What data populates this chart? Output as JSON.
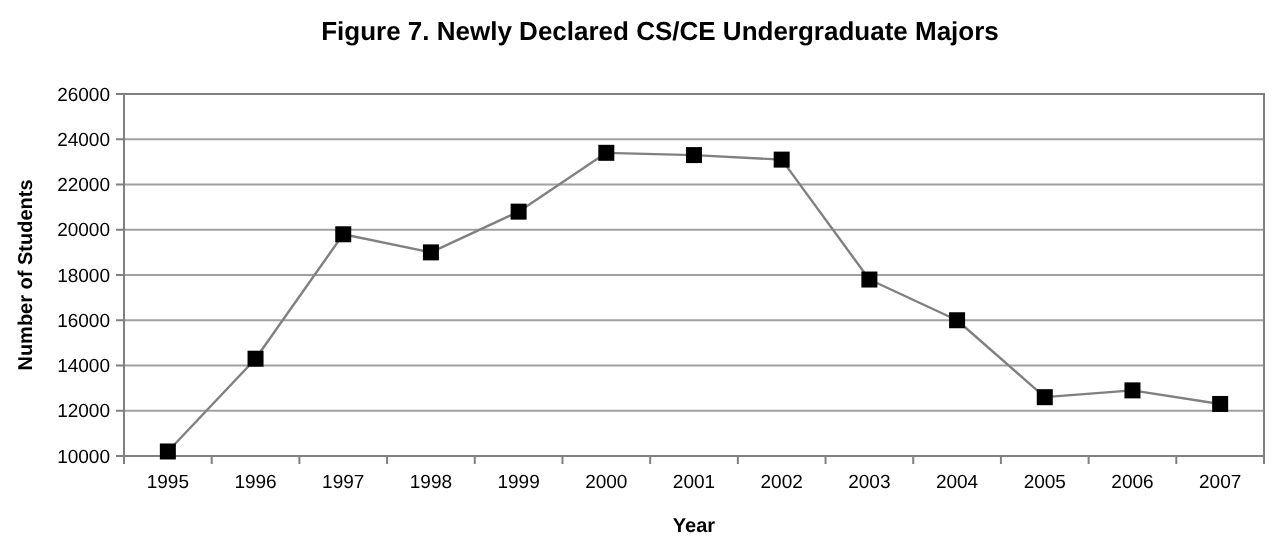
{
  "chart_data": {
    "type": "line",
    "title": "Figure 7. Newly Declared CS/CE Undergraduate Majors",
    "xlabel": "Year",
    "ylabel": "Number of Students",
    "categories": [
      "1995",
      "1996",
      "1997",
      "1998",
      "1999",
      "2000",
      "2001",
      "2002",
      "2003",
      "2004",
      "2005",
      "2006",
      "2007"
    ],
    "series": [
      {
        "color": "#808080",
        "values": [
          10200,
          14300,
          19800,
          19000,
          20800,
          23400,
          23300,
          23100,
          17800,
          16000,
          12600,
          12900,
          12300
        ]
      }
    ],
    "ylim": [
      10000,
      26000
    ],
    "yticks": [
      10000,
      12000,
      14000,
      16000,
      18000,
      20000,
      22000,
      24000,
      26000
    ],
    "grid": "y",
    "marker": "square",
    "line_style": "solid"
  }
}
